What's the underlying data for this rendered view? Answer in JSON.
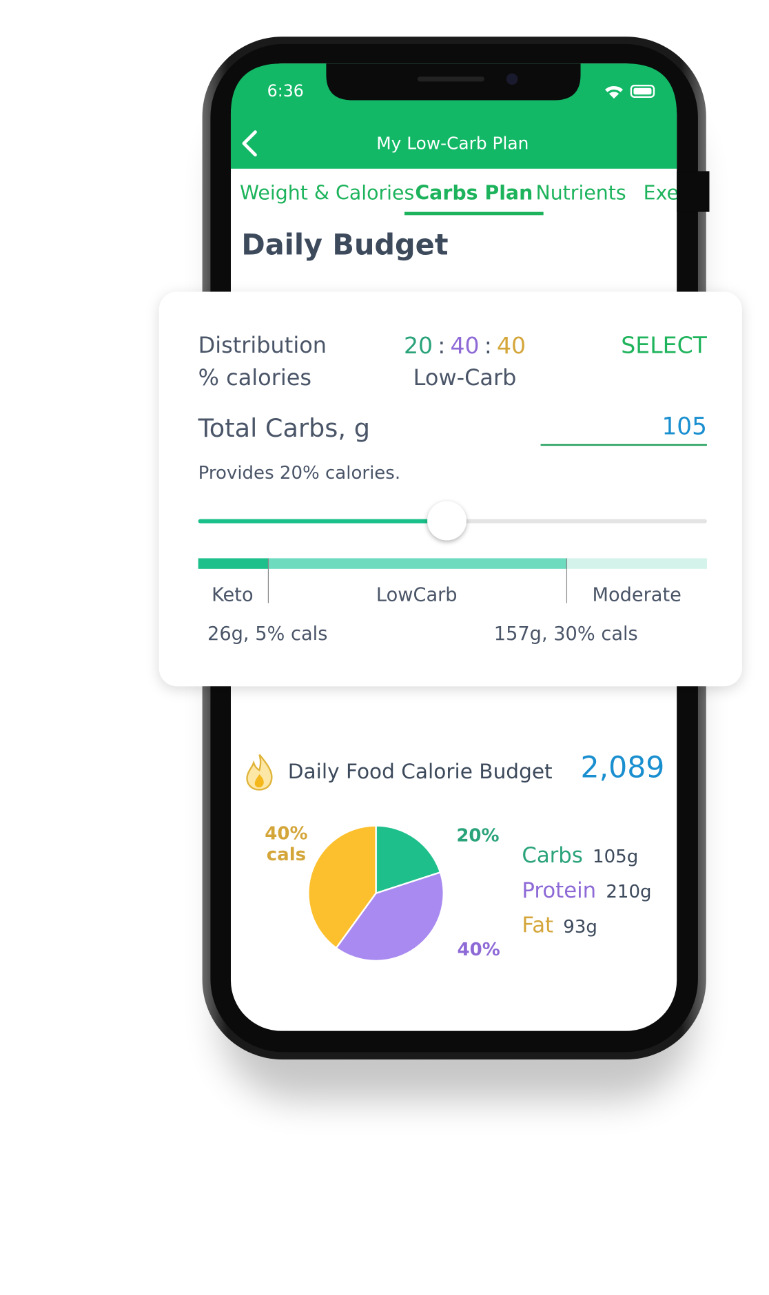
{
  "status_bar": {
    "time": "6:36"
  },
  "nav": {
    "title": "My Low-Carb Plan"
  },
  "tabs": [
    "Weight & Calories",
    "Carbs Plan",
    "Nutrients",
    "Exe"
  ],
  "active_tab": 1,
  "page_title": "Daily Budget",
  "card": {
    "distribution_label": "Distribution",
    "distribution_sublabel": "% calories",
    "ratio": [
      20,
      40,
      40
    ],
    "ratio_separator": ":",
    "plan_name": "Low-Carb",
    "action": "SELECT",
    "carbs_label": "Total Carbs, g",
    "carbs_value": 105,
    "provides": "Provides 20% calories.",
    "zones": [
      "Keto",
      "LowCarb",
      "Moderate"
    ],
    "zone_notes": [
      "26g, 5% cals",
      "157g, 30% cals"
    ]
  },
  "budget": {
    "label": "Daily Food Calorie Budget",
    "value": "2,089"
  },
  "chart_data": {
    "type": "pie",
    "categories": [
      "Carbs",
      "Protein",
      "Fat"
    ],
    "values": [
      20,
      40,
      40
    ],
    "value_labels": [
      "20%",
      "40%",
      "40% cals"
    ],
    "colors": [
      "#1fbf8c",
      "#a98af0",
      "#fcc02e"
    ],
    "amounts": [
      "105g",
      "210g",
      "93g"
    ]
  }
}
